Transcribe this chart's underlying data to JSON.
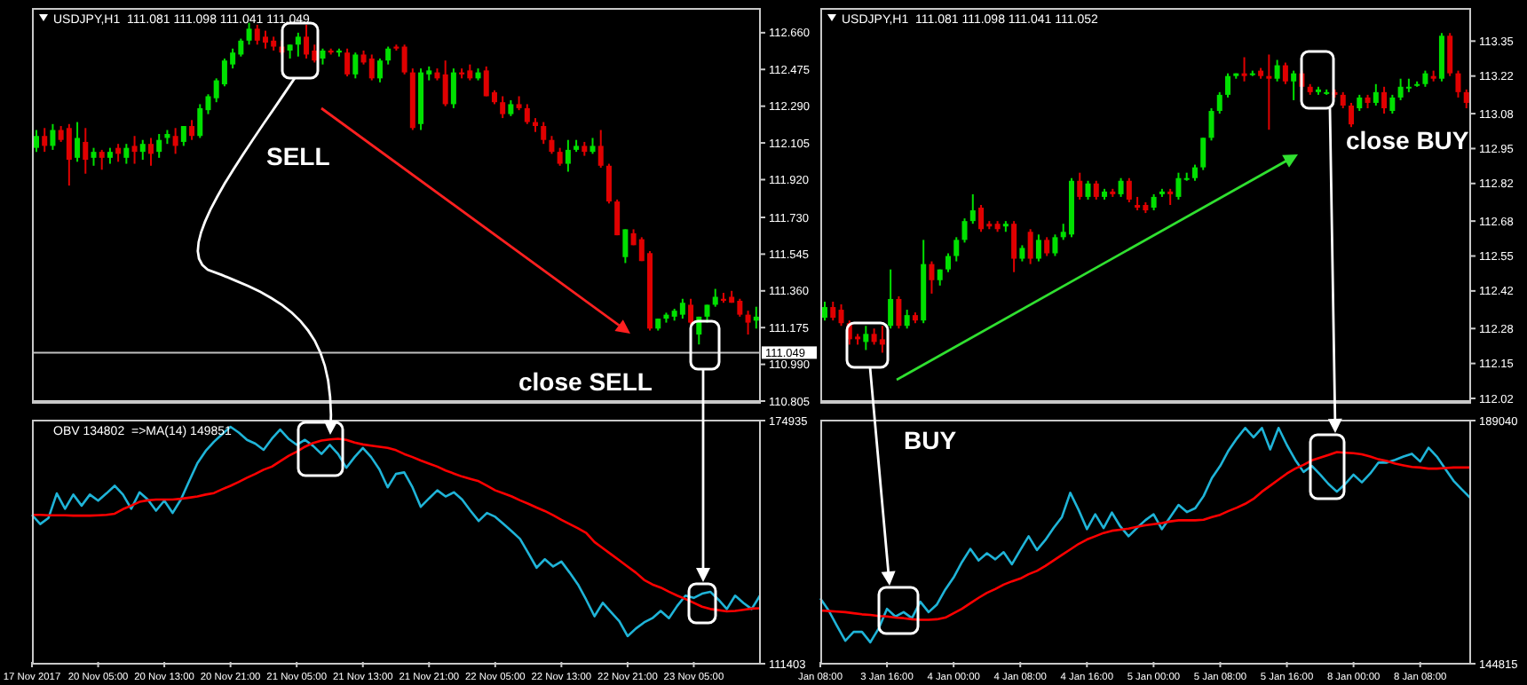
{
  "chart_data": [
    {
      "type": "candlestick",
      "title": "USDJPY,H1  111.081 111.098 111.041 111.049",
      "ohlc": [
        [
          112.08,
          112.17,
          112.06,
          112.14
        ],
        [
          112.14,
          112.18,
          112.06,
          112.09
        ],
        [
          112.09,
          112.2,
          112.07,
          112.17
        ],
        [
          112.17,
          112.19,
          112.11,
          112.12
        ],
        [
          112.18,
          112.2,
          111.89,
          112.02
        ],
        [
          112.03,
          112.21,
          112.01,
          112.13
        ],
        [
          112.11,
          112.18,
          111.95,
          112.02
        ],
        [
          112.03,
          112.08,
          111.99,
          112.06
        ],
        [
          112.06,
          112.07,
          111.97,
          112.03
        ],
        [
          112.03,
          112.08,
          112.0,
          112.06
        ],
        [
          112.08,
          112.1,
          112.01,
          112.05
        ],
        [
          112.03,
          112.1,
          112.0,
          112.08
        ],
        [
          112.09,
          112.14,
          112.0,
          112.06
        ],
        [
          112.06,
          112.12,
          112.02,
          112.1
        ],
        [
          112.1,
          112.13,
          111.99,
          112.05
        ],
        [
          112.06,
          112.15,
          112.03,
          112.12
        ],
        [
          112.13,
          112.17,
          112.1,
          112.15
        ],
        [
          112.14,
          112.18,
          112.05,
          112.09
        ],
        [
          112.11,
          112.19,
          112.09,
          112.19
        ],
        [
          112.19,
          112.22,
          112.12,
          112.14
        ],
        [
          112.14,
          112.3,
          112.13,
          112.28
        ],
        [
          112.27,
          112.35,
          112.25,
          112.34
        ],
        [
          112.33,
          112.43,
          112.31,
          112.42
        ],
        [
          112.4,
          112.53,
          112.39,
          112.52
        ],
        [
          112.5,
          112.58,
          112.48,
          112.56
        ],
        [
          112.55,
          112.63,
          112.54,
          112.62
        ],
        [
          112.62,
          112.71,
          112.6,
          112.68
        ],
        [
          112.68,
          112.7,
          112.6,
          112.62
        ],
        [
          112.64,
          112.67,
          112.58,
          112.61
        ],
        [
          112.62,
          112.64,
          112.57,
          112.59
        ],
        [
          112.59,
          112.62,
          112.55,
          112.56
        ],
        [
          112.57,
          112.6,
          112.53,
          112.6
        ],
        [
          112.6,
          112.66,
          112.54,
          112.64
        ],
        [
          112.64,
          112.7,
          112.53,
          112.55
        ],
        [
          112.57,
          112.6,
          112.51,
          112.52
        ],
        [
          112.53,
          112.58,
          112.5,
          112.57
        ],
        [
          112.57,
          112.58,
          112.55,
          112.56
        ],
        [
          112.56,
          112.58,
          112.54,
          112.57
        ],
        [
          112.56,
          112.58,
          112.44,
          112.45
        ],
        [
          112.45,
          112.56,
          112.43,
          112.55
        ],
        [
          112.55,
          112.57,
          112.5,
          112.51
        ],
        [
          112.53,
          112.55,
          112.42,
          112.43
        ],
        [
          112.43,
          112.53,
          112.41,
          112.52
        ],
        [
          112.52,
          112.59,
          112.5,
          112.58
        ],
        [
          112.59,
          112.6,
          112.57,
          112.58
        ],
        [
          112.59,
          112.6,
          112.45,
          112.46
        ],
        [
          112.46,
          112.48,
          112.17,
          112.18
        ],
        [
          112.2,
          112.48,
          112.17,
          112.46
        ],
        [
          112.45,
          112.49,
          112.42,
          112.47
        ],
        [
          112.46,
          112.48,
          112.42,
          112.43
        ],
        [
          112.45,
          112.52,
          112.29,
          112.3
        ],
        [
          112.3,
          112.48,
          112.28,
          112.46
        ],
        [
          112.46,
          112.48,
          112.43,
          112.45
        ],
        [
          112.47,
          112.5,
          112.42,
          112.43
        ],
        [
          112.43,
          112.48,
          112.42,
          112.46
        ],
        [
          112.47,
          112.49,
          112.34,
          112.34
        ],
        [
          112.36,
          112.37,
          112.3,
          112.31
        ],
        [
          112.31,
          112.34,
          112.23,
          112.25
        ],
        [
          112.25,
          112.32,
          112.24,
          112.3
        ],
        [
          112.3,
          112.34,
          112.27,
          112.28
        ],
        [
          112.28,
          112.3,
          112.2,
          112.21
        ],
        [
          112.21,
          112.23,
          112.16,
          112.19
        ],
        [
          112.19,
          112.21,
          112.1,
          112.12
        ],
        [
          112.12,
          112.14,
          112.05,
          112.06
        ],
        [
          112.06,
          112.08,
          111.99,
          112.0
        ],
        [
          112.0,
          112.12,
          111.96,
          112.07
        ],
        [
          112.07,
          112.12,
          112.06,
          112.09
        ],
        [
          112.09,
          112.11,
          112.04,
          112.06
        ],
        [
          112.06,
          112.13,
          112.05,
          112.09
        ],
        [
          112.09,
          112.17,
          111.98,
          111.99
        ],
        [
          111.99,
          112.0,
          111.8,
          111.81
        ],
        [
          111.81,
          111.82,
          111.64,
          111.64
        ],
        [
          111.53,
          111.67,
          111.5,
          111.67
        ],
        [
          111.65,
          111.67,
          111.59,
          111.59
        ],
        [
          111.62,
          111.63,
          111.51,
          111.51
        ],
        [
          111.55,
          111.56,
          111.16,
          111.17
        ],
        [
          111.17,
          111.22,
          111.16,
          111.22
        ],
        [
          111.22,
          111.25,
          111.2,
          111.24
        ],
        [
          111.23,
          111.27,
          111.21,
          111.26
        ],
        [
          111.24,
          111.32,
          111.22,
          111.3
        ],
        [
          111.29,
          111.32,
          111.19,
          111.2
        ],
        [
          111.14,
          111.23,
          111.09,
          111.23
        ],
        [
          111.23,
          111.29,
          111.2,
          111.29
        ],
        [
          111.29,
          111.37,
          111.28,
          111.33
        ],
        [
          111.32,
          111.35,
          111.3,
          111.31
        ],
        [
          111.33,
          111.36,
          111.3,
          111.3
        ],
        [
          111.31,
          111.32,
          111.23,
          111.24
        ],
        [
          111.24,
          111.26,
          111.14,
          111.2
        ],
        [
          111.21,
          111.28,
          111.17,
          111.23
        ]
      ],
      "colors": [
        "#00e000",
        "#e00000",
        "#00e000",
        "#e00000",
        "#e00000",
        "#00e000",
        "#e00000",
        "#00e000",
        "#e00000",
        "#00e000",
        "#e00000",
        "#00e000",
        "#e00000",
        "#00e000",
        "#e00000",
        "#00e000",
        "#00e000",
        "#e00000",
        "#00e000",
        "#e00000",
        "#00e000",
        "#00e000",
        "#00e000",
        "#00e000",
        "#00e000",
        "#00e000",
        "#00e000",
        "#e00000",
        "#e00000",
        "#e00000",
        "#e00000",
        "#00e000",
        "#00e000",
        "#e00000",
        "#e00000",
        "#00e000",
        "#e00000",
        "#00e000",
        "#e00000",
        "#00e000",
        "#e00000",
        "#e00000",
        "#00e000",
        "#00e000",
        "#e00000",
        "#e00000",
        "#e00000",
        "#00e000",
        "#00e000",
        "#e00000",
        "#e00000",
        "#00e000",
        "#e00000",
        "#e00000",
        "#00e000",
        "#e00000",
        "#e00000",
        "#e00000",
        "#00e000",
        "#e00000",
        "#e00000",
        "#e00000",
        "#e00000",
        "#e00000",
        "#e00000",
        "#00e000",
        "#00e000",
        "#e00000",
        "#00e000",
        "#e00000",
        "#e00000",
        "#e00000",
        "#00e000",
        "#e00000",
        "#e00000",
        "#e00000",
        "#00e000",
        "#00e000",
        "#00e000",
        "#00e000",
        "#e00000",
        "#00e000",
        "#00e000",
        "#00e000",
        "#e00000",
        "#e00000",
        "#e00000",
        "#e00000",
        "#00e000"
      ],
      "ylim": [
        110.805,
        112.78
      ],
      "yticks": [
        {
          "value": 112.66,
          "label": "112.660"
        },
        112.475,
        {
          "value": 112.29,
          "label": "112.290"
        },
        112.105,
        {
          "value": 111.92,
          "label": "111.920"
        },
        {
          "value": 111.73,
          "label": "111.730"
        },
        111.545,
        {
          "value": 111.36,
          "label": "111.360"
        },
        111.175,
        {
          "value": 110.99,
          "label": "110.990"
        },
        110.805
      ],
      "tick_labels": "y",
      "ref_lines": [
        {
          "axis": "y",
          "value": 111.049,
          "label": "111.049",
          "color": "#c0c0c0"
        }
      ],
      "annotations": [
        "SELL",
        "close SELL"
      ]
    },
    {
      "type": "candlestick",
      "title": "USDJPY,H1  111.081 111.098 111.041 111.052",
      "ohlc": [
        [
          112.32,
          112.38,
          112.31,
          112.36
        ],
        [
          112.36,
          112.38,
          112.31,
          112.32
        ],
        [
          112.35,
          112.37,
          112.29,
          112.3
        ],
        [
          112.3,
          112.31,
          112.22,
          112.24
        ],
        [
          112.25,
          112.26,
          112.22,
          112.24
        ],
        [
          112.23,
          112.29,
          112.2,
          112.26
        ],
        [
          112.26,
          112.28,
          112.22,
          112.23
        ],
        [
          112.24,
          112.29,
          112.19,
          112.22
        ],
        [
          112.29,
          112.5,
          112.28,
          112.39
        ],
        [
          112.39,
          112.4,
          112.28,
          112.29
        ],
        [
          112.29,
          112.35,
          112.28,
          112.33
        ],
        [
          112.33,
          112.34,
          112.3,
          112.31
        ],
        [
          112.31,
          112.61,
          112.3,
          112.52
        ],
        [
          112.52,
          112.53,
          112.41,
          112.46
        ],
        [
          112.46,
          112.5,
          112.44,
          112.5
        ],
        [
          112.5,
          112.56,
          112.49,
          112.55
        ],
        [
          112.55,
          112.62,
          112.53,
          112.61
        ],
        [
          112.61,
          112.69,
          112.6,
          112.68
        ],
        [
          112.68,
          112.78,
          112.67,
          112.72
        ],
        [
          112.73,
          112.74,
          112.64,
          112.65
        ],
        [
          112.67,
          112.68,
          112.65,
          112.66
        ],
        [
          112.67,
          112.68,
          112.64,
          112.65
        ],
        [
          112.66,
          112.68,
          112.64,
          112.67
        ],
        [
          112.67,
          112.68,
          112.49,
          112.54
        ],
        [
          112.54,
          112.59,
          112.53,
          112.58
        ],
        [
          112.64,
          112.65,
          112.52,
          112.54
        ],
        [
          112.54,
          112.63,
          112.53,
          112.61
        ],
        [
          112.61,
          112.62,
          112.55,
          112.56
        ],
        [
          112.56,
          112.63,
          112.55,
          112.62
        ],
        [
          112.62,
          112.67,
          112.61,
          112.64
        ],
        [
          112.63,
          112.84,
          112.62,
          112.83
        ],
        [
          112.83,
          112.86,
          112.76,
          112.77
        ],
        [
          112.77,
          112.83,
          112.76,
          112.82
        ],
        [
          112.82,
          112.83,
          112.76,
          112.77
        ],
        [
          112.77,
          112.8,
          112.76,
          112.79
        ],
        [
          112.79,
          112.8,
          112.77,
          112.78
        ],
        [
          112.78,
          112.84,
          112.77,
          112.83
        ],
        [
          112.83,
          112.84,
          112.75,
          112.76
        ],
        [
          112.74,
          112.77,
          112.72,
          112.73
        ],
        [
          112.74,
          112.75,
          112.71,
          112.72
        ],
        [
          112.73,
          112.78,
          112.72,
          112.77
        ],
        [
          112.78,
          112.8,
          112.77,
          112.79
        ],
        [
          112.79,
          112.8,
          112.74,
          112.78
        ],
        [
          112.77,
          112.86,
          112.76,
          112.84
        ],
        [
          112.84,
          112.86,
          112.83,
          112.84
        ],
        [
          112.84,
          112.89,
          112.83,
          112.88
        ],
        [
          112.88,
          112.99,
          112.87,
          112.99
        ],
        [
          112.99,
          113.1,
          112.98,
          113.09
        ],
        [
          113.09,
          113.16,
          113.08,
          113.15
        ],
        [
          113.15,
          113.23,
          113.14,
          113.22
        ],
        [
          113.22,
          113.23,
          113.21,
          113.23
        ],
        [
          113.23,
          113.29,
          113.2,
          113.22
        ],
        [
          113.23,
          113.24,
          113.22,
          113.23
        ],
        [
          113.24,
          113.25,
          113.21,
          113.22
        ],
        [
          113.22,
          113.3,
          113.02,
          113.21
        ],
        [
          113.21,
          113.28,
          113.2,
          113.26
        ],
        [
          113.26,
          113.27,
          113.19,
          113.2
        ],
        [
          113.2,
          113.24,
          113.13,
          113.23
        ],
        [
          113.23,
          113.24,
          113.17,
          113.18
        ],
        [
          113.18,
          113.19,
          113.15,
          113.16
        ],
        [
          113.16,
          113.18,
          113.15,
          113.17
        ],
        [
          113.16,
          113.17,
          113.15,
          113.16
        ],
        [
          113.16,
          113.17,
          113.14,
          113.15
        ],
        [
          113.15,
          113.16,
          113.1,
          113.11
        ],
        [
          113.11,
          113.12,
          113.03,
          113.04
        ],
        [
          113.1,
          113.15,
          113.09,
          113.14
        ],
        [
          113.14,
          113.15,
          113.1,
          113.12
        ],
        [
          113.12,
          113.19,
          113.11,
          113.16
        ],
        [
          113.16,
          113.18,
          113.08,
          113.1
        ],
        [
          113.09,
          113.15,
          113.08,
          113.14
        ],
        [
          113.14,
          113.21,
          113.13,
          113.18
        ],
        [
          113.18,
          113.21,
          113.16,
          113.18
        ],
        [
          113.19,
          113.2,
          113.18,
          113.19
        ],
        [
          113.19,
          113.24,
          113.18,
          113.23
        ],
        [
          113.22,
          113.24,
          113.2,
          113.21
        ],
        [
          113.21,
          113.38,
          113.2,
          113.37
        ],
        [
          113.37,
          113.38,
          113.22,
          113.23
        ],
        [
          113.23,
          113.24,
          113.14,
          113.16
        ],
        [
          113.16,
          113.17,
          113.1,
          113.12
        ]
      ],
      "colors": [
        "#00e000",
        "#e00000",
        "#e00000",
        "#e00000",
        "#e00000",
        "#00e000",
        "#e00000",
        "#e00000",
        "#00e000",
        "#e00000",
        "#00e000",
        "#e00000",
        "#00e000",
        "#e00000",
        "#00e000",
        "#00e000",
        "#00e000",
        "#00e000",
        "#00e000",
        "#e00000",
        "#e00000",
        "#e00000",
        "#00e000",
        "#e00000",
        "#00e000",
        "#e00000",
        "#00e000",
        "#e00000",
        "#00e000",
        "#00e000",
        "#00e000",
        "#e00000",
        "#00e000",
        "#e00000",
        "#00e000",
        "#e00000",
        "#00e000",
        "#e00000",
        "#e00000",
        "#e00000",
        "#00e000",
        "#00e000",
        "#e00000",
        "#00e000",
        "#00e000",
        "#00e000",
        "#00e000",
        "#00e000",
        "#00e000",
        "#00e000",
        "#00e000",
        "#e00000",
        "#00e000",
        "#e00000",
        "#e00000",
        "#00e000",
        "#e00000",
        "#00e000",
        "#e00000",
        "#e00000",
        "#00e000",
        "#00e000",
        "#e00000",
        "#e00000",
        "#e00000",
        "#00e000",
        "#e00000",
        "#00e000",
        "#e00000",
        "#00e000",
        "#00e000",
        "#00e000",
        "#00e000",
        "#00e000",
        "#e00000",
        "#00e000",
        "#e00000",
        "#e00000",
        "#e00000"
      ],
      "ylim": [
        112.01,
        113.47
      ],
      "yticks": [
        113.35,
        113.22,
        113.08,
        112.95,
        112.82,
        112.68,
        112.55,
        112.42,
        112.28,
        112.15,
        112.02
      ],
      "tick_labels": "y",
      "annotations": [
        "close BUY"
      ]
    },
    {
      "type": "line",
      "title": "OBV 134802  =>MA(14) 149851",
      "categories": [
        "17 Nov 2017",
        null,
        null,
        null,
        null,
        null,
        null,
        null,
        "20 Nov 05:00",
        null,
        null,
        null,
        null,
        null,
        null,
        null,
        "20 Nov 13:00",
        null,
        null,
        null,
        null,
        null,
        null,
        null,
        "20 Nov 21:00",
        null,
        null,
        null,
        null,
        null,
        null,
        null,
        "21 Nov 05:00",
        null,
        null,
        null,
        null,
        null,
        null,
        null,
        "21 Nov 13:00",
        null,
        null,
        null,
        null,
        null,
        null,
        null,
        "21 Nov 21:00",
        null,
        null,
        null,
        null,
        null,
        null,
        null,
        "22 Nov 05:00",
        null,
        null,
        null,
        null,
        null,
        null,
        null,
        "22 Nov 13:00",
        null,
        null,
        null,
        null,
        null,
        null,
        null,
        "22 Nov 21:00",
        null,
        null,
        null,
        null,
        null,
        null,
        null,
        "23 Nov 05:00",
        null,
        null,
        null,
        null,
        null,
        null,
        null,
        null
      ],
      "series": [
        {
          "color": "#1fb4d8",
          "values": [
            150300,
            147900,
            149500,
            155900,
            151900,
            155600,
            152700,
            155600,
            154000,
            155900,
            157900,
            155600,
            151900,
            156200,
            154300,
            151400,
            154000,
            150800,
            154300,
            159100,
            163800,
            167000,
            169400,
            171400,
            173300,
            171800,
            169900,
            168900,
            167300,
            170200,
            172600,
            170200,
            168600,
            169900,
            168300,
            166200,
            168600,
            166200,
            162600,
            165400,
            167800,
            165400,
            162200,
            157500,
            161000,
            161400,
            157500,
            152400,
            154600,
            156700,
            155100,
            156200,
            154300,
            151400,
            148700,
            150800,
            149800,
            147900,
            146000,
            144000,
            140300,
            136500,
            138700,
            136800,
            138100,
            135200,
            132100,
            128100,
            123800,
            127300,
            124900,
            122500,
            118600,
            120600,
            122200,
            123300,
            125200,
            123300,
            126500,
            129200,
            128600,
            129700,
            130200,
            128100,
            125700,
            129200,
            127300,
            125700,
            129200
          ]
        },
        {
          "color": "#ff0000",
          "values": [
            150300,
            150300,
            150200,
            150200,
            150200,
            150100,
            150100,
            150100,
            150200,
            150300,
            150600,
            151800,
            152700,
            153700,
            154100,
            154300,
            154300,
            154300,
            154500,
            154800,
            155100,
            155600,
            156000,
            157000,
            157900,
            158900,
            160000,
            161000,
            162100,
            162900,
            164300,
            165700,
            166800,
            168100,
            169100,
            169700,
            170000,
            170200,
            169900,
            169200,
            168700,
            168400,
            168100,
            167800,
            167200,
            166200,
            165400,
            164500,
            163700,
            162900,
            161900,
            161100,
            160300,
            159700,
            159100,
            157900,
            156700,
            155900,
            155100,
            154100,
            153200,
            152200,
            151300,
            150200,
            149000,
            147900,
            146800,
            145600,
            143200,
            141600,
            140000,
            138400,
            136800,
            135200,
            133300,
            132100,
            131300,
            130200,
            129200,
            128300,
            127300,
            126300,
            125700,
            125400,
            125100,
            125200,
            125500,
            125800,
            125900
          ]
        }
      ],
      "ylim": [
        111403,
        174935
      ],
      "yticks": [
        174935,
        111403
      ]
    },
    {
      "type": "line",
      "categories": [
        "Jan 08:00",
        null,
        null,
        null,
        null,
        null,
        null,
        null,
        "3 Jan 16:00",
        null,
        null,
        null,
        null,
        null,
        null,
        null,
        "4 Jan 00:00",
        null,
        null,
        null,
        null,
        null,
        null,
        null,
        "4 Jan 08:00",
        null,
        null,
        null,
        null,
        null,
        null,
        null,
        "4 Jan 16:00",
        null,
        null,
        null,
        null,
        null,
        null,
        null,
        "5 Jan 00:00",
        null,
        null,
        null,
        null,
        null,
        null,
        null,
        "5 Jan 08:00",
        null,
        null,
        null,
        null,
        null,
        null,
        null,
        "5 Jan 16:00",
        null,
        null,
        null,
        null,
        null,
        null,
        null,
        "8 Jan 00:00",
        null,
        null,
        null,
        null,
        null,
        null,
        null,
        "8 Jan 08:00",
        null,
        null,
        null,
        null,
        null,
        null
      ],
      "series": [
        {
          "color": "#1fb4d8",
          "values": [
            156700,
            154500,
            151700,
            149000,
            150600,
            150600,
            148700,
            151200,
            154800,
            153400,
            154200,
            153100,
            156100,
            154200,
            155600,
            158300,
            160500,
            163300,
            165700,
            163600,
            164900,
            163800,
            165100,
            162900,
            165500,
            168000,
            165500,
            167300,
            169500,
            171500,
            175900,
            172800,
            169300,
            172000,
            169500,
            172300,
            169800,
            168000,
            169500,
            170900,
            172000,
            169300,
            171500,
            173700,
            172400,
            173100,
            175300,
            178600,
            180800,
            183600,
            185800,
            187700,
            186000,
            187700,
            183800,
            187700,
            184600,
            181900,
            179700,
            180800,
            179200,
            177500,
            176100,
            177500,
            179200,
            177800,
            179400,
            181400,
            181400,
            181900,
            182500,
            183000,
            181600,
            184100,
            182500,
            180300,
            178100,
            176500,
            175000
          ]
        },
        {
          "color": "#ff0000",
          "values": [
            154500,
            154400,
            154300,
            154200,
            154000,
            153800,
            153700,
            153500,
            153400,
            153200,
            153100,
            152900,
            152800,
            152800,
            152900,
            153200,
            154000,
            154800,
            155800,
            156800,
            157700,
            158400,
            159200,
            159800,
            160300,
            161100,
            161700,
            162600,
            163600,
            164600,
            165600,
            166600,
            167400,
            168000,
            168600,
            169000,
            169200,
            169400,
            169700,
            170000,
            170200,
            170400,
            170700,
            170900,
            170900,
            170900,
            171000,
            171500,
            171900,
            172600,
            173200,
            173900,
            174800,
            176100,
            177200,
            178300,
            179400,
            180300,
            181000,
            181800,
            182300,
            182800,
            183300,
            183200,
            183100,
            182900,
            182500,
            182000,
            181700,
            181200,
            180900,
            180600,
            180500,
            180300,
            180300,
            180400,
            180500,
            180500,
            180500
          ]
        }
      ],
      "ylim": [
        144815,
        189040
      ],
      "yticks": [
        189040,
        144815
      ],
      "annotations": [
        "BUY"
      ]
    }
  ]
}
